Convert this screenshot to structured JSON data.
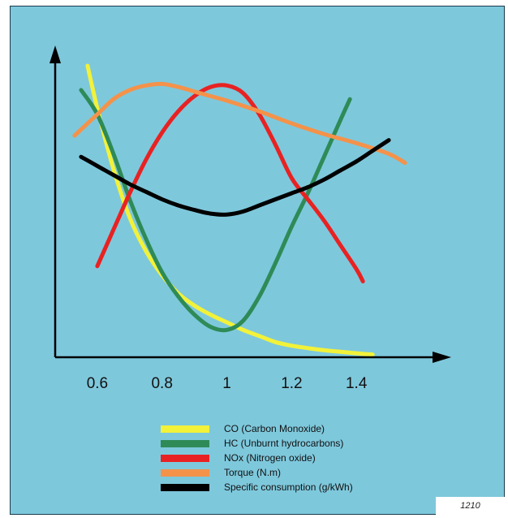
{
  "chart_data": {
    "type": "line",
    "title": "",
    "xlabel": "",
    "ylabel": "",
    "xlim": [
      0.47,
      1.66
    ],
    "ylim": [
      0,
      100
    ],
    "x_ticks": [
      {
        "value": 0.6,
        "label": "0.6"
      },
      {
        "value": 0.8,
        "label": "0.8"
      },
      {
        "value": 1.0,
        "label": "1"
      },
      {
        "value": 1.2,
        "label": "1.2"
      },
      {
        "value": 1.4,
        "label": "1.4"
      }
    ],
    "y_ticks_shown": false,
    "grid": false,
    "legend_position": "bottom",
    "series": [
      {
        "name": "CO (Carbon Monoxide)",
        "color": "#f2f23a",
        "points": [
          [
            0.57,
            96
          ],
          [
            0.6,
            82
          ],
          [
            0.65,
            62
          ],
          [
            0.7,
            46
          ],
          [
            0.75,
            35
          ],
          [
            0.8,
            27
          ],
          [
            0.85,
            21
          ],
          [
            0.9,
            17
          ],
          [
            0.95,
            14
          ],
          [
            1.0,
            11.5
          ],
          [
            1.05,
            9
          ],
          [
            1.1,
            7
          ],
          [
            1.15,
            5
          ],
          [
            1.2,
            3.8
          ],
          [
            1.25,
            3
          ],
          [
            1.3,
            2.3
          ],
          [
            1.35,
            1.8
          ],
          [
            1.4,
            1.3
          ],
          [
            1.45,
            0.9
          ]
        ]
      },
      {
        "name": "HC (Unburnt hydrocarbons)",
        "color": "#2e8b57",
        "points": [
          [
            0.55,
            88
          ],
          [
            0.6,
            80
          ],
          [
            0.65,
            67
          ],
          [
            0.7,
            52
          ],
          [
            0.75,
            39
          ],
          [
            0.8,
            28
          ],
          [
            0.85,
            20
          ],
          [
            0.9,
            14
          ],
          [
            0.95,
            10
          ],
          [
            1.0,
            9
          ],
          [
            1.05,
            12
          ],
          [
            1.1,
            20
          ],
          [
            1.15,
            31
          ],
          [
            1.2,
            43
          ],
          [
            1.25,
            54
          ],
          [
            1.3,
            66
          ],
          [
            1.35,
            78
          ],
          [
            1.38,
            85
          ]
        ]
      },
      {
        "name": "NOx (Nitrogen oxide)",
        "color": "#e82222",
        "points": [
          [
            0.6,
            30
          ],
          [
            0.65,
            42
          ],
          [
            0.7,
            54
          ],
          [
            0.75,
            65
          ],
          [
            0.8,
            74
          ],
          [
            0.85,
            81
          ],
          [
            0.9,
            86
          ],
          [
            0.95,
            89
          ],
          [
            1.0,
            89.5
          ],
          [
            1.05,
            87
          ],
          [
            1.1,
            80
          ],
          [
            1.15,
            70
          ],
          [
            1.2,
            59
          ],
          [
            1.25,
            52
          ],
          [
            1.3,
            45
          ],
          [
            1.35,
            37
          ],
          [
            1.4,
            29
          ],
          [
            1.42,
            25
          ]
        ]
      },
      {
        "name": "Torque (N.m)",
        "color": "#f4924a",
        "points": [
          [
            0.53,
            73
          ],
          [
            0.6,
            80
          ],
          [
            0.65,
            85
          ],
          [
            0.7,
            88
          ],
          [
            0.75,
            89.5
          ],
          [
            0.8,
            90
          ],
          [
            0.85,
            89
          ],
          [
            0.9,
            87.5
          ],
          [
            0.95,
            86
          ],
          [
            1.0,
            84.5
          ],
          [
            1.1,
            81
          ],
          [
            1.2,
            77
          ],
          [
            1.3,
            73.5
          ],
          [
            1.4,
            70.5
          ],
          [
            1.5,
            67
          ],
          [
            1.55,
            64
          ]
        ]
      },
      {
        "name": "Specific consumption (g/kWh)",
        "color": "#000000",
        "points": [
          [
            0.55,
            66
          ],
          [
            0.6,
            63
          ],
          [
            0.65,
            60
          ],
          [
            0.7,
            57
          ],
          [
            0.75,
            54.5
          ],
          [
            0.8,
            52
          ],
          [
            0.85,
            50
          ],
          [
            0.9,
            48.5
          ],
          [
            0.95,
            47.3
          ],
          [
            1.0,
            47
          ],
          [
            1.05,
            48
          ],
          [
            1.1,
            50
          ],
          [
            1.15,
            52
          ],
          [
            1.2,
            54
          ],
          [
            1.25,
            56
          ],
          [
            1.3,
            58.5
          ],
          [
            1.35,
            61.5
          ],
          [
            1.4,
            64.5
          ],
          [
            1.45,
            68
          ],
          [
            1.5,
            71.5
          ]
        ]
      }
    ]
  },
  "figure_number": "1210"
}
